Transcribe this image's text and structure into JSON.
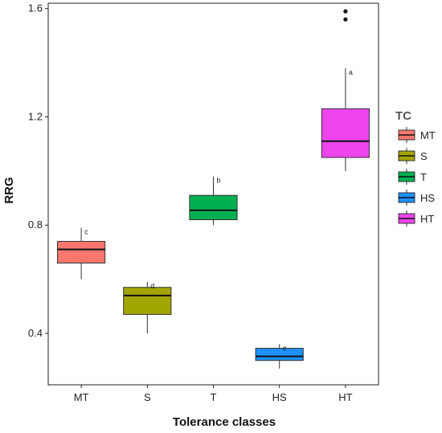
{
  "chart_data": {
    "type": "boxplot",
    "xlabel": "Tolerance classes",
    "ylabel": "RRG",
    "categories": [
      "MT",
      "S",
      "T",
      "HS",
      "HT"
    ],
    "ylim": [
      0.21,
      1.62
    ],
    "yticks": [
      0.4,
      0.8,
      1.2,
      1.6
    ],
    "ytick_labels": [
      "0.4",
      "0.8",
      "1.2",
      "1.6"
    ],
    "grid": false,
    "legend": {
      "title": "TC",
      "position": "right",
      "entries": [
        "MT",
        "S",
        "T",
        "HS",
        "HT"
      ]
    },
    "series": [
      {
        "category": "MT",
        "min": 0.6,
        "q1": 0.66,
        "median": 0.71,
        "q3": 0.74,
        "max": 0.79,
        "outliers": [],
        "letter": "c",
        "color": "#f8766d"
      },
      {
        "category": "S",
        "min": 0.4,
        "q1": 0.47,
        "median": 0.54,
        "q3": 0.57,
        "max": 0.59,
        "outliers": [],
        "letter": "d",
        "color": "#a3a500"
      },
      {
        "category": "T",
        "min": 0.8,
        "q1": 0.82,
        "median": 0.855,
        "q3": 0.91,
        "max": 0.98,
        "outliers": [],
        "letter": "b",
        "color": "#00b050"
      },
      {
        "category": "HS",
        "min": 0.27,
        "q1": 0.3,
        "median": 0.315,
        "q3": 0.345,
        "max": 0.36,
        "outliers": [],
        "letter": "e",
        "color": "#1e90ff"
      },
      {
        "category": "HT",
        "min": 1.0,
        "q1": 1.05,
        "median": 1.11,
        "q3": 1.23,
        "max": 1.38,
        "outliers": [
          1.56,
          1.59
        ],
        "letter": "a",
        "color": "#ee44ee"
      }
    ]
  }
}
